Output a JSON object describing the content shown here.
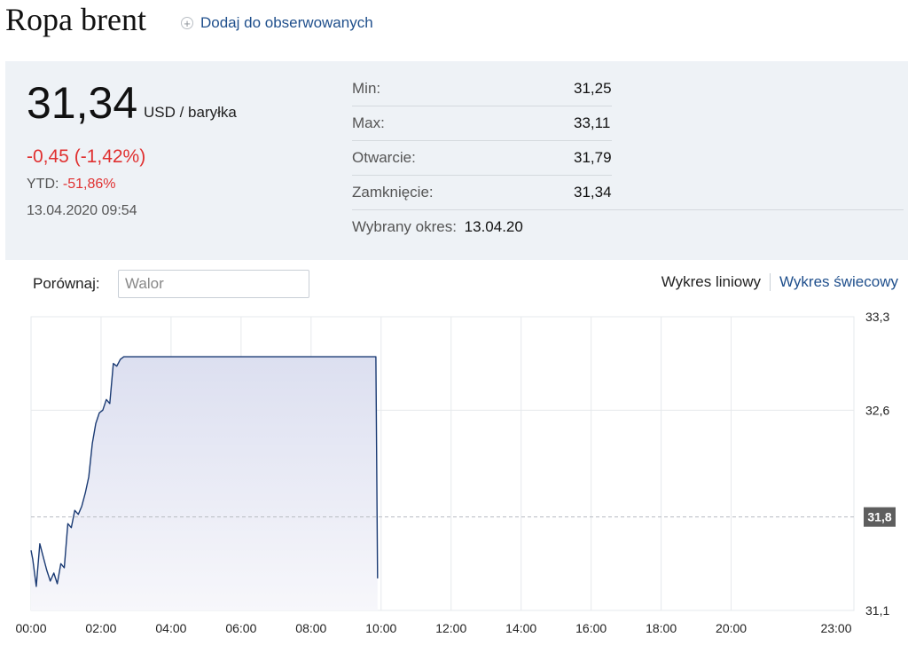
{
  "header": {
    "title": "Ropa brent",
    "watch_label": "Dodaj do obserwowanych"
  },
  "quote": {
    "price": "31,34",
    "unit": "USD / baryłka",
    "change": "-0,45 (-1,42%)",
    "ytd_label": "YTD:",
    "ytd_value": "-51,86%",
    "datetime": "13.04.2020 09:54",
    "stats": [
      {
        "label": "Min:",
        "value": "31,25"
      },
      {
        "label": "Max:",
        "value": "33,11"
      },
      {
        "label": "Otwarcie:",
        "value": "31,79"
      },
      {
        "label": "Zamknięcie:",
        "value": "31,34"
      }
    ],
    "period_label": "Wybrany okres:",
    "period_value": "13.04.20"
  },
  "controls": {
    "compare_label": "Porównaj:",
    "compare_placeholder": "Walor",
    "line_chart_label": "Wykres liniowy",
    "candle_chart_label": "Wykres świecowy"
  },
  "colors": {
    "line": "#1a3a73",
    "negative": "#e03030",
    "link": "#1f4f8c",
    "panel": "#eef2f6",
    "marker": "#5e5e5e"
  },
  "chart_data": {
    "type": "area",
    "x_tick_labels": [
      "00:00",
      "02:00",
      "04:00",
      "06:00",
      "08:00",
      "10:00",
      "12:00",
      "14:00",
      "16:00",
      "18:00",
      "20:00",
      "23:00"
    ],
    "x_ticks_hours": [
      0,
      2,
      4,
      6,
      8,
      10,
      12,
      14,
      16,
      18,
      20,
      23
    ],
    "y_tick_labels": [
      "33,3",
      "32,6",
      "31,1"
    ],
    "y_ticks": [
      33.3,
      32.6,
      31.1
    ],
    "ylim": [
      31.1,
      33.3
    ],
    "xlim_hours": [
      0,
      23
    ],
    "marker_label": "31,8",
    "marker_value": 31.8,
    "grid": true,
    "series": [
      {
        "x": [
          0,
          0.05,
          0.15,
          0.25,
          0.35,
          0.45,
          0.55,
          0.65,
          0.75,
          0.85,
          0.95,
          1.05,
          1.15,
          1.25,
          1.35,
          1.45,
          1.55,
          1.65,
          1.75,
          1.85,
          1.95,
          2.05,
          2.15,
          2.25,
          2.35,
          2.45,
          2.55,
          2.65,
          2.75,
          2.85,
          2.95,
          3.05,
          3.15,
          3.25,
          3.35,
          3.45,
          3.55,
          3.65,
          3.75,
          3.85,
          3.95,
          4.05,
          4.15,
          4.25,
          4.35,
          4.45,
          4.55,
          4.65,
          4.75,
          4.85,
          4.95,
          5.05,
          5.15,
          5.25,
          5.35,
          5.45,
          5.55,
          5.65,
          5.75,
          5.85,
          5.95,
          6.05,
          6.15,
          6.25,
          6.35,
          6.45,
          6.55,
          6.65,
          6.75,
          6.85,
          6.95,
          7.05,
          7.15,
          7.25,
          7.35,
          7.45,
          7.55,
          7.65,
          7.75,
          7.85,
          7.95,
          8.05,
          8.15,
          8.25,
          8.35,
          8.45,
          8.55,
          8.65,
          8.75,
          8.85,
          8.95,
          9.05,
          9.15,
          9.25,
          9.35,
          9.45,
          9.55,
          9.65,
          9.75,
          9.85,
          9.9
        ],
        "y": [
          31.55,
          31.48,
          31.28,
          31.6,
          31.5,
          31.4,
          31.32,
          31.38,
          31.3,
          31.45,
          31.42,
          31.75,
          31.72,
          31.85,
          31.82,
          31.88,
          31.98,
          32.1,
          32.35,
          32.5,
          32.58,
          32.6,
          32.68,
          32.65,
          32.95,
          32.93,
          32.98,
          33.0,
          33.0,
          33.0,
          33.0,
          33.0,
          33.0,
          33.0,
          33.0,
          33.0,
          33.0,
          33.0,
          33.0,
          33.0,
          33.0,
          33.0,
          33.0,
          33.0,
          33.0,
          33.0,
          33.0,
          33.0,
          33.0,
          33.0,
          33.0,
          33.0,
          33.0,
          33.0,
          33.0,
          33.0,
          33.0,
          33.0,
          33.0,
          33.0,
          33.0,
          33.0,
          33.0,
          33.0,
          33.0,
          33.0,
          33.0,
          33.0,
          33.0,
          33.0,
          33.0,
          33.0,
          33.0,
          33.0,
          33.0,
          33.0,
          33.0,
          33.0,
          33.0,
          33.0,
          33.0,
          33.0,
          33.0,
          33.0,
          33.0,
          33.0,
          33.0,
          33.0,
          33.0,
          33.0,
          33.0,
          33.0,
          33.0,
          33.0,
          33.0,
          33.0,
          33.0,
          33.0,
          33.0,
          33.0,
          31.34
        ]
      }
    ]
  }
}
